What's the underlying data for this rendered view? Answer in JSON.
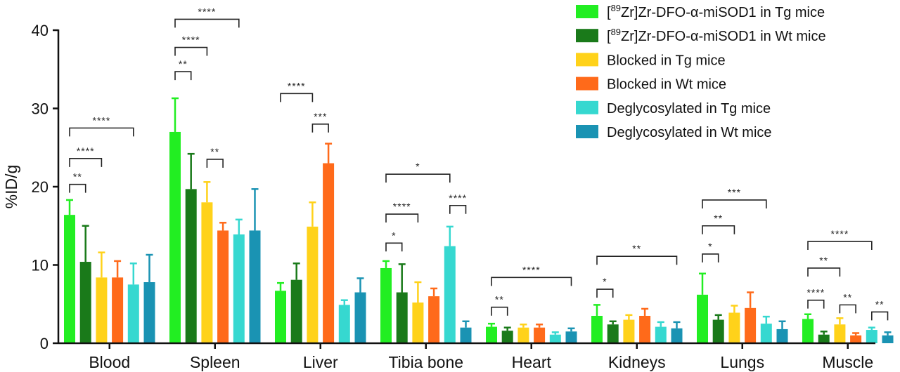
{
  "chart_data": {
    "type": "bar",
    "ylabel": "%ID/g",
    "ylim": [
      0,
      40
    ],
    "yticks": [
      0,
      10,
      20,
      30,
      40
    ],
    "categories": [
      "Blood",
      "Spleen",
      "Liver",
      "Tibia bone",
      "Heart",
      "Kidneys",
      "Lungs",
      "Muscle"
    ],
    "legend_position": "top-right",
    "series": [
      {
        "name": "[89Zr]Zr-DFO-α-miSOD1 in Tg mice",
        "sup": "89",
        "pre": "[",
        "post": "Zr]Zr-DFO-α-miSOD1 in Tg mice",
        "color": "#22ee22",
        "values": [
          16.4,
          27.0,
          6.7,
          9.6,
          2.1,
          3.5,
          6.2,
          3.1
        ],
        "errors": [
          1.9,
          4.3,
          1.0,
          0.9,
          0.4,
          1.4,
          2.7,
          0.6
        ]
      },
      {
        "name": "[89Zr]Zr-DFO-α-miSOD1 in Wt mice",
        "sup": "89",
        "pre": "[",
        "post": "Zr]Zr-DFO-α-miSOD1 in Wt mice",
        "color": "#1a7a1a",
        "values": [
          10.4,
          19.7,
          8.1,
          6.5,
          1.6,
          2.4,
          3.0,
          1.1
        ],
        "errors": [
          4.6,
          4.5,
          2.1,
          3.6,
          0.4,
          0.4,
          0.6,
          0.4
        ]
      },
      {
        "name": "Blocked in Tg mice",
        "color": "#ffd21a",
        "values": [
          8.4,
          18.0,
          14.9,
          5.2,
          2.0,
          3.0,
          3.9,
          2.4
        ],
        "errors": [
          3.2,
          2.6,
          3.1,
          2.6,
          0.4,
          0.6,
          0.9,
          0.8
        ]
      },
      {
        "name": "Blocked in Wt mice",
        "color": "#ff6a1a",
        "values": [
          8.4,
          14.4,
          23.0,
          6.0,
          2.0,
          3.5,
          4.5,
          1.0
        ],
        "errors": [
          2.1,
          1.0,
          2.5,
          1.0,
          0.4,
          0.9,
          2.0,
          0.3
        ]
      },
      {
        "name": "Deglycosylated in Tg mice",
        "color": "#36d8d0",
        "values": [
          7.5,
          13.9,
          4.9,
          12.4,
          1.1,
          2.1,
          2.5,
          1.7
        ],
        "errors": [
          2.7,
          1.9,
          0.6,
          2.5,
          0.3,
          0.6,
          0.9,
          0.3
        ]
      },
      {
        "name": "Deglycosylated in Wt mice",
        "color": "#1a93b3",
        "values": [
          7.8,
          14.4,
          6.5,
          2.0,
          1.5,
          1.9,
          1.8,
          1.0
        ],
        "errors": [
          3.5,
          5.3,
          1.8,
          0.8,
          0.4,
          0.8,
          1.0,
          0.4
        ]
      }
    ],
    "significance": [
      {
        "category": 0,
        "from": 0,
        "to": 1,
        "y": 20.3,
        "label": "**"
      },
      {
        "category": 0,
        "from": 0,
        "to": 2,
        "y": 23.6,
        "label": "****"
      },
      {
        "category": 0,
        "from": 0,
        "to": 4,
        "y": 27.5,
        "label": "****"
      },
      {
        "category": 1,
        "from": 0,
        "to": 1,
        "y": 34.7,
        "label": "**"
      },
      {
        "category": 1,
        "from": 0,
        "to": 2,
        "y": 37.8,
        "label": "****"
      },
      {
        "category": 1,
        "from": 0,
        "to": 4,
        "y": 41.4,
        "label": "****"
      },
      {
        "category": 1,
        "from": 2,
        "to": 3,
        "y": 23.5,
        "label": "**"
      },
      {
        "category": 2,
        "from": 0,
        "to": 2,
        "y": 31.9,
        "label": "****"
      },
      {
        "category": 2,
        "from": 2,
        "to": 3,
        "y": 28.0,
        "label": "***"
      },
      {
        "category": 3,
        "from": 0,
        "to": 4,
        "y": 21.6,
        "label": "*"
      },
      {
        "category": 3,
        "from": 0,
        "to": 1,
        "y": 12.8,
        "label": "*"
      },
      {
        "category": 3,
        "from": 0,
        "to": 2,
        "y": 16.5,
        "label": "****"
      },
      {
        "category": 3,
        "from": 4,
        "to": 5,
        "y": 17.6,
        "label": "****"
      },
      {
        "category": 4,
        "from": 0,
        "to": 1,
        "y": 4.6,
        "label": "**"
      },
      {
        "category": 4,
        "from": 0,
        "to": 5,
        "y": 8.4,
        "label": "****"
      },
      {
        "category": 5,
        "from": 0,
        "to": 1,
        "y": 6.9,
        "label": "*"
      },
      {
        "category": 5,
        "from": 0,
        "to": 5,
        "y": 11.1,
        "label": "**"
      },
      {
        "category": 6,
        "from": 0,
        "to": 1,
        "y": 11.4,
        "label": "*"
      },
      {
        "category": 6,
        "from": 0,
        "to": 2,
        "y": 15.0,
        "label": "**"
      },
      {
        "category": 6,
        "from": 0,
        "to": 4,
        "y": 18.3,
        "label": "***"
      },
      {
        "category": 7,
        "from": 0,
        "to": 1,
        "y": 5.5,
        "label": "****"
      },
      {
        "category": 7,
        "from": 0,
        "to": 2,
        "y": 9.6,
        "label": "**"
      },
      {
        "category": 7,
        "from": 0,
        "to": 4,
        "y": 13.0,
        "label": "****"
      },
      {
        "category": 7,
        "from": 2,
        "to": 3,
        "y": 4.9,
        "label": "**"
      },
      {
        "category": 7,
        "from": 4,
        "to": 5,
        "y": 4.0,
        "label": "**"
      }
    ]
  }
}
